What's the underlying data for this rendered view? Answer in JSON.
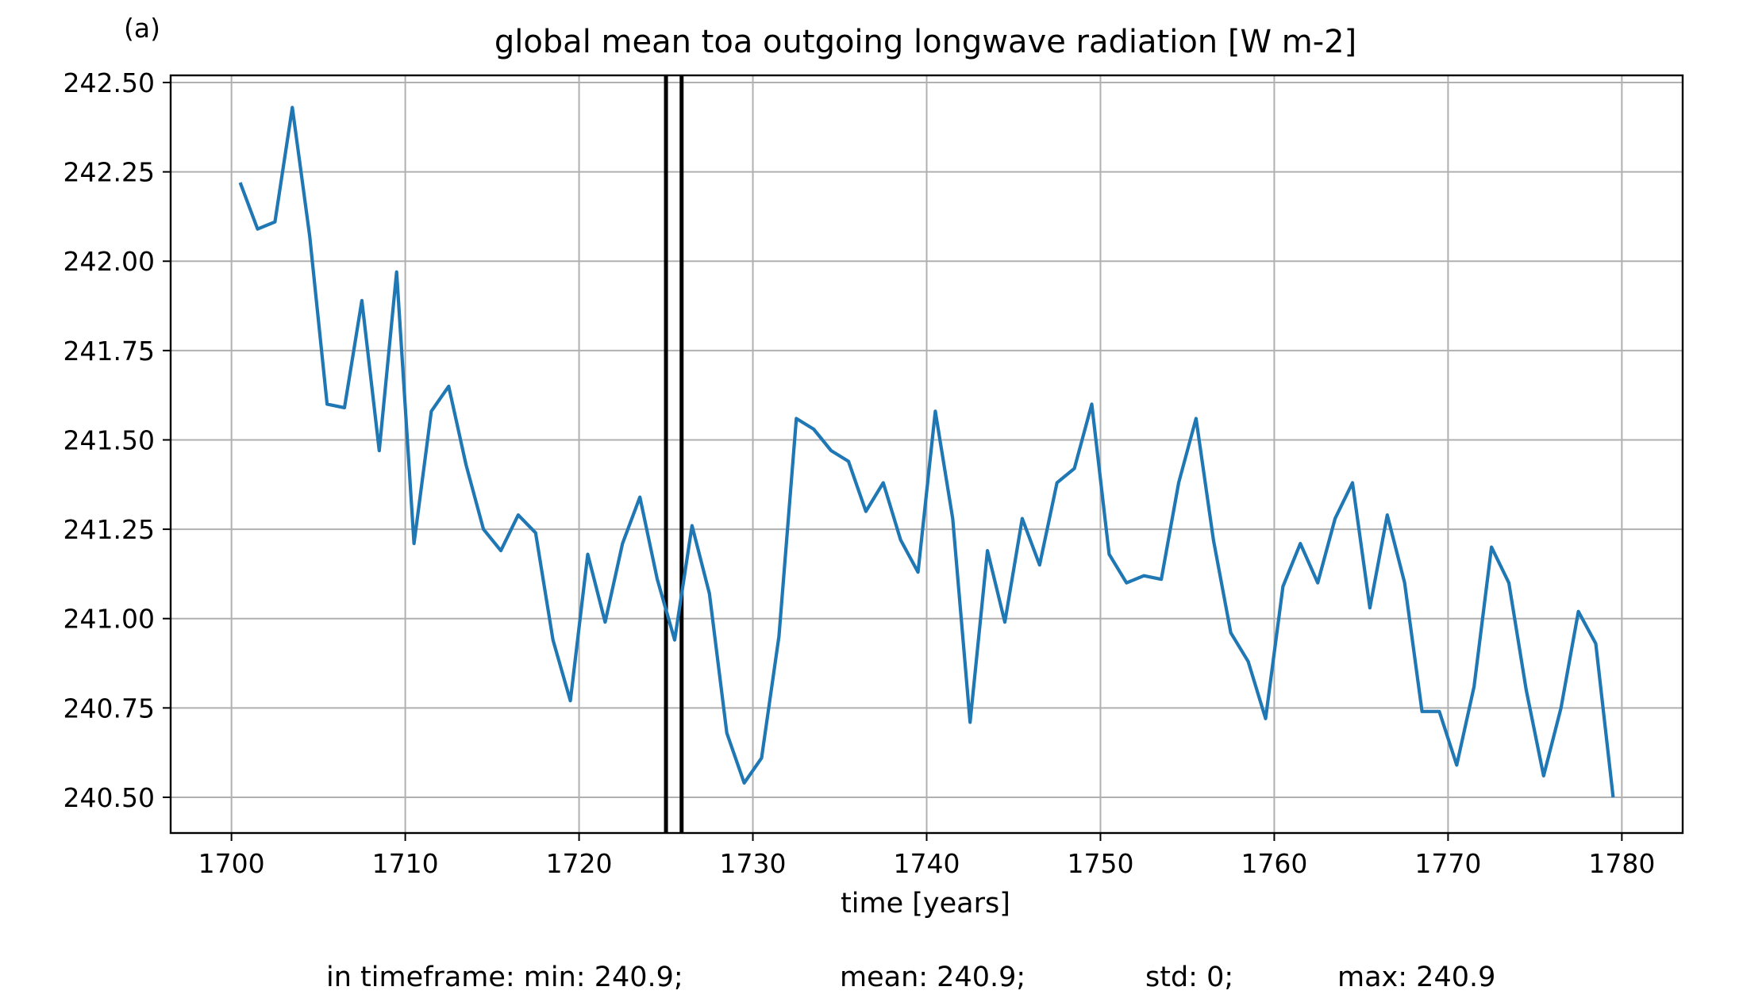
{
  "chart_data": {
    "type": "line",
    "panel_label": "(a)",
    "title": "global mean toa outgoing longwave radiation [W m-2]",
    "xlabel": "time [years]",
    "ylabel": "",
    "xlim": [
      1696.5,
      1783.5
    ],
    "ylim": [
      240.4,
      242.52
    ],
    "xticks": [
      1700,
      1710,
      1720,
      1730,
      1740,
      1750,
      1760,
      1770,
      1780
    ],
    "yticks": [
      240.5,
      240.75,
      241.0,
      241.25,
      241.5,
      241.75,
      242.0,
      242.25,
      242.5
    ],
    "xtick_labels": [
      "1700",
      "1710",
      "1720",
      "1730",
      "1740",
      "1750",
      "1760",
      "1770",
      "1780"
    ],
    "ytick_labels": [
      "240.50",
      "240.75",
      "241.00",
      "241.25",
      "241.50",
      "241.75",
      "242.00",
      "242.25",
      "242.50"
    ],
    "grid": true,
    "series": [
      {
        "color": "#1f77b4",
        "x": [
          1700.5,
          1701.5,
          1702.5,
          1703.5,
          1704.5,
          1705.5,
          1706.5,
          1707.5,
          1708.5,
          1709.5,
          1710.5,
          1711.5,
          1712.5,
          1713.5,
          1714.5,
          1715.5,
          1716.5,
          1717.5,
          1718.5,
          1719.5,
          1720.5,
          1721.5,
          1722.5,
          1723.5,
          1724.5,
          1725.5,
          1726.5,
          1727.5,
          1728.5,
          1729.5,
          1730.5,
          1731.5,
          1732.5,
          1733.5,
          1734.5,
          1735.5,
          1736.5,
          1737.5,
          1738.5,
          1739.5,
          1740.5,
          1741.5,
          1742.5,
          1743.5,
          1744.5,
          1745.5,
          1746.5,
          1747.5,
          1748.5,
          1749.5,
          1750.5,
          1751.5,
          1752.5,
          1753.5,
          1754.5,
          1755.5,
          1756.5,
          1757.5,
          1758.5,
          1759.5,
          1760.5,
          1761.5,
          1762.5,
          1763.5,
          1764.5,
          1765.5,
          1766.5,
          1767.5,
          1768.5,
          1769.5,
          1770.5,
          1771.5,
          1772.5,
          1773.5,
          1774.5,
          1775.5,
          1776.5,
          1777.5,
          1778.5,
          1779.5
        ],
        "values": [
          242.22,
          242.09,
          242.11,
          242.43,
          242.07,
          241.6,
          241.59,
          241.89,
          241.47,
          241.97,
          241.21,
          241.58,
          241.65,
          241.43,
          241.25,
          241.19,
          241.29,
          241.24,
          240.94,
          240.77,
          241.18,
          240.99,
          241.21,
          241.34,
          241.11,
          240.94,
          241.26,
          241.07,
          240.68,
          240.54,
          240.61,
          240.95,
          241.56,
          241.53,
          241.47,
          241.44,
          241.3,
          241.38,
          241.22,
          241.13,
          241.58,
          241.28,
          240.71,
          241.19,
          240.99,
          241.28,
          241.15,
          241.38,
          241.42,
          241.6,
          241.18,
          241.1,
          241.12,
          241.11,
          241.38,
          241.56,
          241.22,
          240.96,
          240.88,
          240.72,
          241.09,
          241.21,
          241.1,
          241.28,
          241.38,
          241.03,
          241.29,
          241.1,
          240.74,
          240.74,
          240.59,
          240.81,
          241.2,
          241.1,
          240.8,
          240.56,
          240.75,
          241.02,
          240.93,
          240.5
        ]
      }
    ],
    "vlines": [
      1725.0,
      1725.9
    ],
    "vline_color": "#000000"
  },
  "stats": {
    "min": "in timeframe: min: 240.9;",
    "mean": "mean: 240.9;",
    "std": "std: 0;",
    "max": "max: 240.9"
  }
}
